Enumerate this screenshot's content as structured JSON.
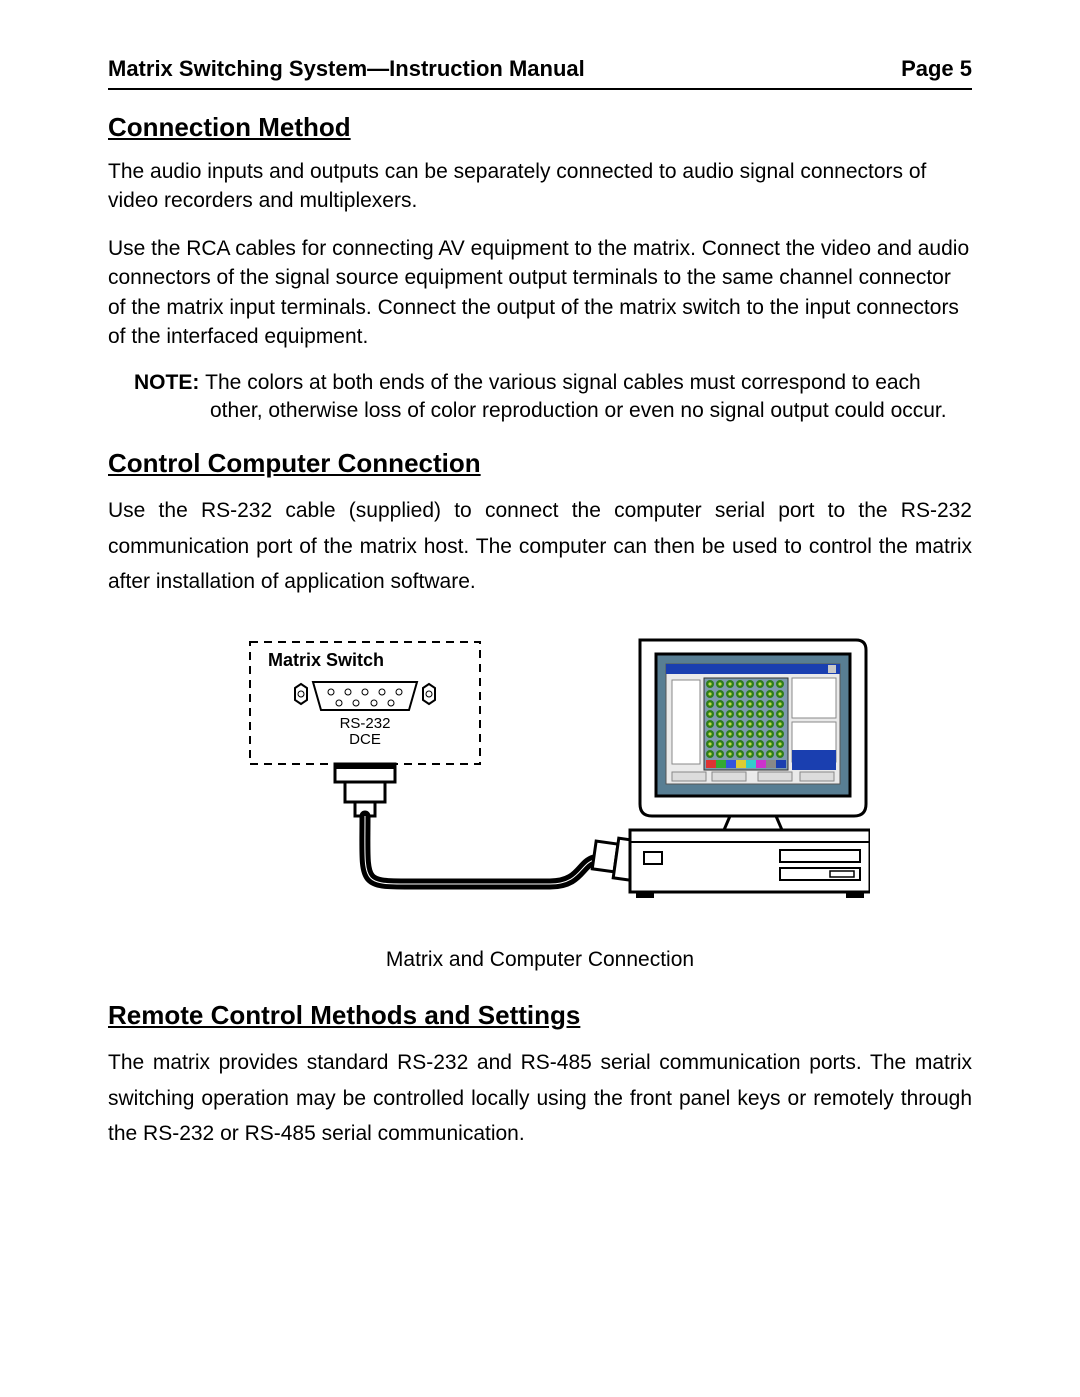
{
  "header": {
    "title": "Matrix Switching System—Instruction Manual",
    "page_label": "Page 5"
  },
  "sections": {
    "connection_method": {
      "heading": "Connection Method",
      "para1": "The audio inputs and outputs can be separately connected to audio signal connectors of video recorders and multiplexers.",
      "para2": "Use the RCA cables for connecting AV equipment to the matrix.  Connect the video and audio connectors of the signal source equipment output terminals to the same channel connector of the matrix input terminals.  Connect the output of the matrix switch to the input connectors of the interfaced equipment.",
      "note_label": "NOTE: ",
      "note_text": "The colors at both ends of the various signal cables must correspond to each other, otherwise loss of color reproduction or even no signal output could occur."
    },
    "control_computer": {
      "heading": "Control Computer Connection",
      "para1": "Use the RS-232 cable (supplied) to connect the computer serial port to the RS-232 communication port of the matrix host.  The computer can then be used to control the matrix after installation of application software."
    },
    "remote_control": {
      "heading": "Remote Control Methods and Settings",
      "para1": "The matrix provides standard RS-232 and RS-485 serial communication ports.  The matrix switching operation may be controlled locally using the front panel keys or remotely through the RS-232 or RS-485 serial communication."
    }
  },
  "figure": {
    "caption": "Matrix and Computer Connection",
    "matrix_label": "Matrix Switch",
    "port_label_1": "RS-232",
    "port_label_2": "DCE",
    "colors": {
      "stroke": "#000000",
      "screen_bg": "#587e93",
      "app_window": "#eaeaea",
      "app_title": "#1a3fb0",
      "app_panel": "#7e9bae",
      "grid_cell": "#2e7d1a",
      "grid_cell_inner": "#b6d84a",
      "computer_shadow": "#d0d0d0"
    }
  }
}
